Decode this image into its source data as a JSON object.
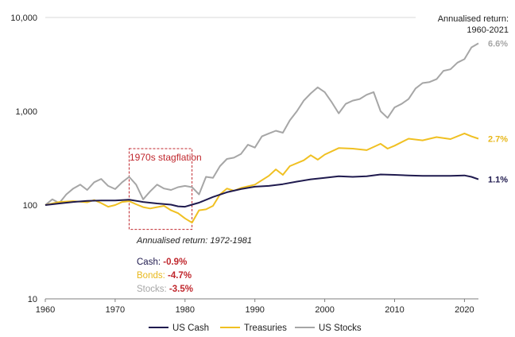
{
  "chart_data": {
    "type": "line",
    "y_scale": "log",
    "ylim": [
      10,
      10000
    ],
    "xlim": [
      1960,
      2022
    ],
    "y_ticks": [
      "10",
      "100",
      "1,000",
      "10,000"
    ],
    "x_ticks": [
      "1960",
      "1970",
      "1980",
      "1990",
      "2000",
      "2010",
      "2020"
    ],
    "grid": "horizontal-top-only",
    "legend_position": "bottom",
    "series": [
      {
        "name": "US Cash",
        "color": "#1f1a4e",
        "end_label": "1.1%",
        "points": [
          [
            1960,
            100
          ],
          [
            1962,
            104
          ],
          [
            1964,
            108
          ],
          [
            1966,
            111
          ],
          [
            1968,
            112
          ],
          [
            1970,
            112
          ],
          [
            1972,
            114
          ],
          [
            1974,
            108
          ],
          [
            1976,
            104
          ],
          [
            1978,
            101
          ],
          [
            1979,
            97
          ],
          [
            1980,
            96
          ],
          [
            1981,
            101
          ],
          [
            1982,
            106
          ],
          [
            1984,
            122
          ],
          [
            1986,
            137
          ],
          [
            1988,
            148
          ],
          [
            1990,
            157
          ],
          [
            1992,
            160
          ],
          [
            1994,
            167
          ],
          [
            1996,
            178
          ],
          [
            1998,
            188
          ],
          [
            2000,
            195
          ],
          [
            2002,
            203
          ],
          [
            2004,
            200
          ],
          [
            2006,
            203
          ],
          [
            2008,
            212
          ],
          [
            2010,
            210
          ],
          [
            2012,
            207
          ],
          [
            2014,
            205
          ],
          [
            2016,
            205
          ],
          [
            2018,
            205
          ],
          [
            2020,
            207
          ],
          [
            2021,
            200
          ],
          [
            2022,
            188
          ]
        ]
      },
      {
        "name": "Treasuries",
        "color": "#f0c022",
        "end_label": "2.7%",
        "points": [
          [
            1960,
            100
          ],
          [
            1962,
            108
          ],
          [
            1964,
            110
          ],
          [
            1966,
            107
          ],
          [
            1967,
            113
          ],
          [
            1968,
            105
          ],
          [
            1969,
            96
          ],
          [
            1970,
            100
          ],
          [
            1971,
            108
          ],
          [
            1972,
            110
          ],
          [
            1973,
            102
          ],
          [
            1974,
            95
          ],
          [
            1975,
            92
          ],
          [
            1976,
            95
          ],
          [
            1977,
            98
          ],
          [
            1978,
            88
          ],
          [
            1979,
            82
          ],
          [
            1980,
            72
          ],
          [
            1981,
            65
          ],
          [
            1982,
            88
          ],
          [
            1983,
            90
          ],
          [
            1984,
            98
          ],
          [
            1985,
            130
          ],
          [
            1986,
            150
          ],
          [
            1987,
            142
          ],
          [
            1988,
            152
          ],
          [
            1990,
            165
          ],
          [
            1992,
            205
          ],
          [
            1993,
            240
          ],
          [
            1994,
            210
          ],
          [
            1995,
            260
          ],
          [
            1997,
            300
          ],
          [
            1998,
            340
          ],
          [
            1999,
            305
          ],
          [
            2000,
            345
          ],
          [
            2002,
            405
          ],
          [
            2004,
            400
          ],
          [
            2006,
            385
          ],
          [
            2008,
            450
          ],
          [
            2009,
            400
          ],
          [
            2010,
            430
          ],
          [
            2012,
            510
          ],
          [
            2014,
            490
          ],
          [
            2016,
            530
          ],
          [
            2018,
            505
          ],
          [
            2020,
            580
          ],
          [
            2021,
            540
          ],
          [
            2022,
            510
          ]
        ]
      },
      {
        "name": "US Stocks",
        "color": "#a6a6a6",
        "end_label": "6.6%",
        "points": [
          [
            1960,
            100
          ],
          [
            1961,
            115
          ],
          [
            1962,
            105
          ],
          [
            1963,
            130
          ],
          [
            1964,
            150
          ],
          [
            1965,
            165
          ],
          [
            1966,
            145
          ],
          [
            1967,
            175
          ],
          [
            1968,
            190
          ],
          [
            1969,
            160
          ],
          [
            1970,
            148
          ],
          [
            1971,
            175
          ],
          [
            1972,
            200
          ],
          [
            1973,
            165
          ],
          [
            1974,
            115
          ],
          [
            1975,
            140
          ],
          [
            1976,
            165
          ],
          [
            1977,
            150
          ],
          [
            1978,
            145
          ],
          [
            1979,
            155
          ],
          [
            1980,
            160
          ],
          [
            1981,
            155
          ],
          [
            1982,
            130
          ],
          [
            1983,
            200
          ],
          [
            1984,
            195
          ],
          [
            1985,
            260
          ],
          [
            1986,
            310
          ],
          [
            1987,
            320
          ],
          [
            1988,
            350
          ],
          [
            1989,
            440
          ],
          [
            1990,
            410
          ],
          [
            1991,
            540
          ],
          [
            1992,
            580
          ],
          [
            1993,
            620
          ],
          [
            1994,
            590
          ],
          [
            1995,
            800
          ],
          [
            1996,
            1000
          ],
          [
            1997,
            1300
          ],
          [
            1998,
            1550
          ],
          [
            1999,
            1800
          ],
          [
            2000,
            1600
          ],
          [
            2001,
            1250
          ],
          [
            2002,
            950
          ],
          [
            2003,
            1200
          ],
          [
            2004,
            1300
          ],
          [
            2005,
            1350
          ],
          [
            2006,
            1500
          ],
          [
            2007,
            1600
          ],
          [
            2008,
            1000
          ],
          [
            2009,
            850
          ],
          [
            2010,
            1100
          ],
          [
            2011,
            1200
          ],
          [
            2012,
            1350
          ],
          [
            2013,
            1750
          ],
          [
            2014,
            2000
          ],
          [
            2015,
            2050
          ],
          [
            2016,
            2200
          ],
          [
            2017,
            2700
          ],
          [
            2018,
            2800
          ],
          [
            2019,
            3300
          ],
          [
            2020,
            3600
          ],
          [
            2021,
            4800
          ],
          [
            2022,
            5300
          ]
        ]
      }
    ],
    "header_annotation": [
      "Annualised return:",
      "1960-2021"
    ],
    "period_box": {
      "label": "1970s stagflation",
      "x_range": [
        1972,
        1981
      ],
      "y_range": [
        55,
        400
      ],
      "caption": "Annualised return: 1972-1981",
      "stats": [
        {
          "label": "Cash: ",
          "value": "-0.9%",
          "label_color": "#1f1a4e"
        },
        {
          "label": "Bonds: ",
          "value": "-4.7%",
          "label_color": "#e8b81c"
        },
        {
          "label": "Stocks: ",
          "value": "-3.5%",
          "label_color": "#a6a6a6"
        }
      ],
      "value_color": "#c0272d",
      "box_color": "#c0272d"
    }
  }
}
